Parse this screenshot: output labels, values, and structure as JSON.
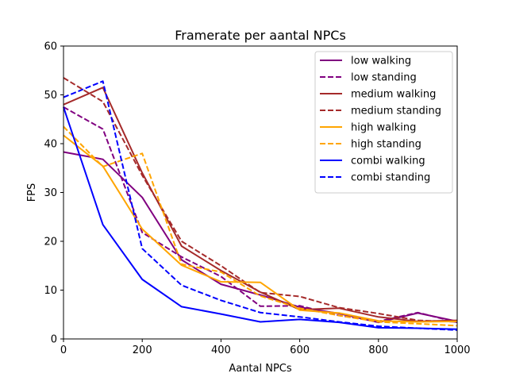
{
  "chart_data": {
    "type": "line",
    "title": "Framerate per aantal NPCs",
    "xlabel": "Aantal NPCs",
    "ylabel": "FPS",
    "xlim": [
      0,
      1000
    ],
    "ylim": [
      0,
      60
    ],
    "xticks": [
      0,
      200,
      400,
      600,
      800,
      1000
    ],
    "yticks": [
      0,
      10,
      20,
      30,
      40,
      50,
      60
    ],
    "xtick_labels": [
      "0",
      "200",
      "400",
      "600",
      "800",
      "1000"
    ],
    "ytick_labels": [
      "0",
      "10",
      "20",
      "30",
      "40",
      "50",
      "60"
    ],
    "grid": false,
    "legend_position": "top-right",
    "series": [
      {
        "name": "low walking",
        "color": "#800080",
        "dash": "solid",
        "x": [
          0,
          100,
          200,
          300,
          400,
          500,
          600,
          700,
          800,
          900,
          1000
        ],
        "y": [
          38.3,
          36.8,
          29.0,
          16.2,
          11.2,
          9.0,
          6.5,
          5.2,
          3.4,
          5.3,
          3.6
        ]
      },
      {
        "name": "low standing",
        "color": "#800080",
        "dash": "dashed",
        "x": [
          0,
          100,
          200,
          300,
          400,
          500,
          600,
          700,
          800,
          900,
          1000
        ],
        "y": [
          47.5,
          43.0,
          21.8,
          16.8,
          12.8,
          6.7,
          6.8,
          4.8,
          3.6,
          5.4,
          3.4
        ]
      },
      {
        "name": "medium walking",
        "color": "#a52a2a",
        "dash": "solid",
        "x": [
          0,
          100,
          200,
          300,
          400,
          500,
          600,
          700,
          800,
          900,
          1000
        ],
        "y": [
          48.0,
          51.5,
          34.0,
          19.0,
          14.0,
          9.6,
          6.0,
          6.3,
          4.5,
          3.6,
          3.8
        ]
      },
      {
        "name": "medium standing",
        "color": "#a52a2a",
        "dash": "dashed",
        "x": [
          0,
          100,
          200,
          300,
          400,
          500,
          600,
          700,
          800,
          900,
          1000
        ],
        "y": [
          53.5,
          48.6,
          33.5,
          20.0,
          15.0,
          9.5,
          8.7,
          6.4,
          5.2,
          3.8,
          3.5
        ]
      },
      {
        "name": "high walking",
        "color": "#ffa500",
        "dash": "solid",
        "x": [
          0,
          100,
          200,
          300,
          400,
          500,
          600,
          700,
          800,
          900,
          1000
        ],
        "y": [
          41.7,
          35.4,
          22.5,
          15.1,
          11.7,
          11.6,
          5.9,
          5.3,
          3.7,
          3.5,
          3.6
        ]
      },
      {
        "name": "high standing",
        "color": "#ffa500",
        "dash": "dashed",
        "x": [
          0,
          100,
          200,
          300,
          400,
          500,
          600,
          700,
          800,
          900,
          1000
        ],
        "y": [
          43.5,
          35.3,
          38.0,
          15.3,
          13.7,
          8.8,
          6.3,
          4.8,
          3.5,
          3.1,
          2.7
        ]
      },
      {
        "name": "combi walking",
        "color": "#0000ff",
        "dash": "solid",
        "x": [
          0,
          100,
          200,
          300,
          400,
          500,
          600,
          700,
          800,
          900,
          1000
        ],
        "y": [
          47.5,
          23.4,
          12.2,
          6.6,
          5.1,
          3.5,
          4.0,
          3.4,
          2.3,
          2.2,
          2.0
        ]
      },
      {
        "name": "combi standing",
        "color": "#0000ff",
        "dash": "dashed",
        "x": [
          0,
          100,
          200,
          300,
          400,
          500,
          600,
          700,
          800,
          900,
          1000
        ],
        "y": [
          49.5,
          52.8,
          18.5,
          11.0,
          7.9,
          5.4,
          4.5,
          3.5,
          2.6,
          2.2,
          1.8
        ]
      }
    ]
  }
}
